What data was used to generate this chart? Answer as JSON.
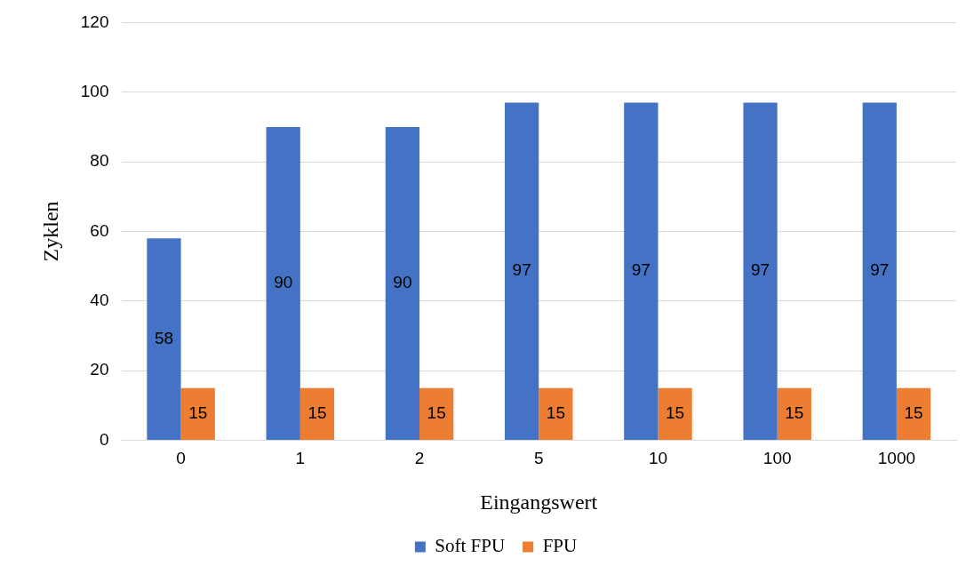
{
  "chart_data": {
    "type": "bar",
    "xlabel": "Eingangswert",
    "ylabel": "Zyklen",
    "categories": [
      "0",
      "1",
      "2",
      "5",
      "10",
      "100",
      "1000"
    ],
    "series": [
      {
        "name": "Soft FPU",
        "color": "#4472c4",
        "values": [
          58,
          90,
          90,
          97,
          97,
          97,
          97
        ]
      },
      {
        "name": "FPU",
        "color": "#ed7d31",
        "values": [
          15,
          15,
          15,
          15,
          15,
          15,
          15
        ]
      }
    ],
    "ylim": [
      0,
      120
    ],
    "yticks": [
      0,
      20,
      40,
      60,
      80,
      100,
      120
    ],
    "grid": "y",
    "legend": "bottom",
    "data_labels": true
  }
}
